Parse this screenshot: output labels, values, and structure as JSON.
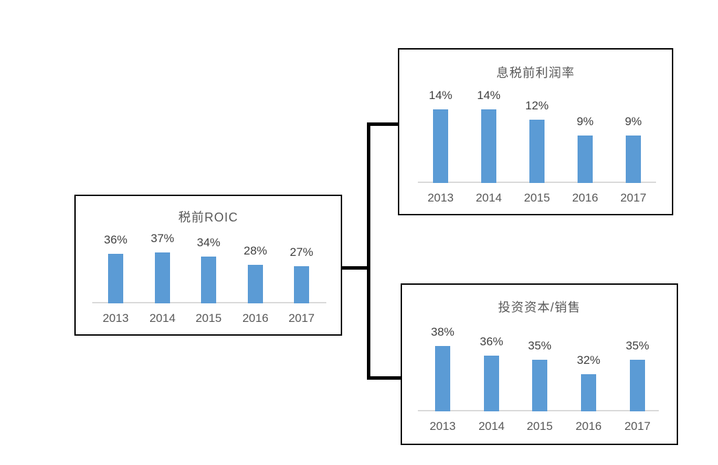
{
  "diagram": {
    "type": "decomposition-tree",
    "parent": "税前ROIC",
    "children": [
      "息税前利润率",
      "投资资本/销售"
    ]
  },
  "colors": {
    "background": "#FFFFFF",
    "bar_fill": "#5B9BD5",
    "axis_line": "#D9D9D9",
    "box_border": "#000000",
    "connector": "#000000",
    "title_text": "#595959",
    "category_text": "#595959",
    "value_label_text": "#404040"
  },
  "chart_data": [
    {
      "type": "bar",
      "title": "税前ROIC",
      "categories": [
        "2013",
        "2014",
        "2015",
        "2016",
        "2017"
      ],
      "values": [
        36,
        37,
        34,
        28,
        27
      ],
      "value_labels": [
        "36%",
        "37%",
        "34%",
        "28%",
        "27%"
      ],
      "unit": "percent",
      "ylim": [
        0,
        40
      ],
      "grid": false,
      "legend": false,
      "data_labels": "above-bars",
      "y_axis_visible": false
    },
    {
      "type": "bar",
      "title": "息税前利润率",
      "categories": [
        "2013",
        "2014",
        "2015",
        "2016",
        "2017"
      ],
      "values": [
        14,
        14,
        12,
        9,
        9
      ],
      "value_labels": [
        "14%",
        "14%",
        "12%",
        "9%",
        "9%"
      ],
      "unit": "percent",
      "ylim": [
        0,
        15
      ],
      "grid": false,
      "legend": false,
      "data_labels": "above-bars",
      "y_axis_visible": false
    },
    {
      "type": "bar",
      "title": "投资资本/销售",
      "categories": [
        "2013",
        "2014",
        "2015",
        "2016",
        "2017"
      ],
      "values": [
        38,
        36,
        35,
        32,
        35
      ],
      "value_labels": [
        "38%",
        "36%",
        "35%",
        "32%",
        "35%"
      ],
      "unit": "percent",
      "ylim": [
        24,
        38
      ],
      "grid": false,
      "legend": false,
      "data_labels": "above-bars",
      "y_axis_visible": false
    }
  ]
}
